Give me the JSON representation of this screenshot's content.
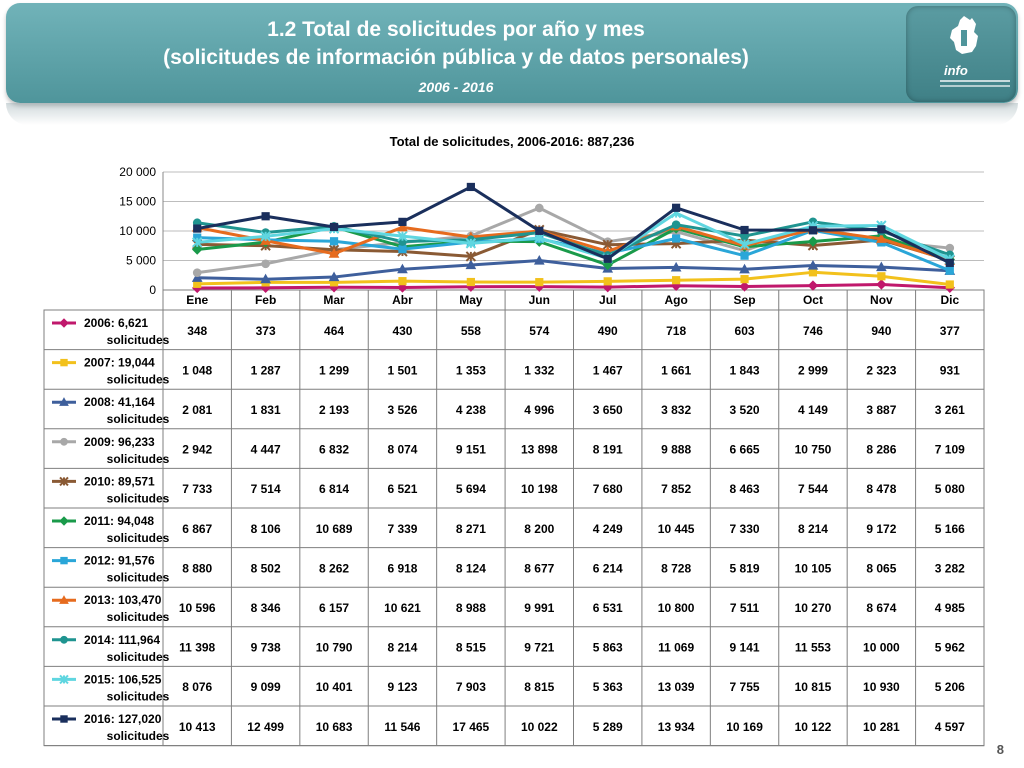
{
  "header": {
    "title_line1": "1.2 Total de solicitudes por año y mes",
    "title_line2": "(solicitudes de información pública y de datos personales)",
    "subtitle": "2006 - 2016",
    "logo_text": "info"
  },
  "page_number": "8",
  "chart_data": {
    "type": "line",
    "title": "Total de solicitudes, 2006-2016: 887,236",
    "xlabel": "",
    "ylabel": "",
    "ylim": [
      0,
      20000
    ],
    "yticks": [
      0,
      5000,
      10000,
      15000,
      20000
    ],
    "ytick_labels": [
      "0",
      "5 000",
      "10 000",
      "15 000",
      "20 000"
    ],
    "grid": true,
    "legend": "data-table",
    "categories": [
      "Ene",
      "Feb",
      "Mar",
      "Abr",
      "May",
      "Jun",
      "Jul",
      "Ago",
      "Sep",
      "Oct",
      "Nov",
      "Dic"
    ],
    "series": [
      {
        "name_line1": "2006: 6,621",
        "name_line2": "solicitudes",
        "color": "#c0186c",
        "marker": "diamond",
        "values": [
          348,
          373,
          464,
          430,
          558,
          574,
          490,
          718,
          603,
          746,
          940,
          377
        ],
        "labels": [
          "348",
          "373",
          "464",
          "430",
          "558",
          "574",
          "490",
          "718",
          "603",
          "746",
          "940",
          "377"
        ]
      },
      {
        "name_line1": "2007: 19,044",
        "name_line2": "solicitudes",
        "color": "#f2c11c",
        "marker": "square",
        "values": [
          1048,
          1287,
          1299,
          1501,
          1353,
          1332,
          1467,
          1661,
          1843,
          2999,
          2323,
          931
        ],
        "labels": [
          "1 048",
          "1 287",
          "1 299",
          "1 501",
          "1 353",
          "1 332",
          "1 467",
          "1 661",
          "1 843",
          "2 999",
          "2 323",
          "931"
        ]
      },
      {
        "name_line1": "2008: 41,164",
        "name_line2": "solicitudes",
        "color": "#3e5f9c",
        "marker": "triangle",
        "values": [
          2081,
          1831,
          2193,
          3526,
          4238,
          4996,
          3650,
          3832,
          3520,
          4149,
          3887,
          3261
        ],
        "labels": [
          "2 081",
          "1 831",
          "2 193",
          "3 526",
          "4 238",
          "4 996",
          "3 650",
          "3 832",
          "3 520",
          "4 149",
          "3 887",
          "3 261"
        ]
      },
      {
        "name_line1": "2009: 96,233",
        "name_line2": "solicitudes",
        "color": "#a8a8a8",
        "marker": "circle",
        "values": [
          2942,
          4447,
          6832,
          8074,
          9151,
          13898,
          8191,
          9888,
          6665,
          10750,
          8286,
          7109
        ],
        "labels": [
          "2 942",
          "4 447",
          "6 832",
          "8 074",
          "9 151",
          "13 898",
          "8 191",
          "9 888",
          "6 665",
          "10 750",
          "8 286",
          "7 109"
        ]
      },
      {
        "name_line1": "2010: 89,571",
        "name_line2": "solicitudes",
        "color": "#8a5a34",
        "marker": "star",
        "values": [
          7733,
          7514,
          6814,
          6521,
          5694,
          10198,
          7680,
          7852,
          8463,
          7544,
          8478,
          5080
        ],
        "labels": [
          "7 733",
          "7 514",
          "6 814",
          "6 521",
          "5 694",
          "10 198",
          "7 680",
          "7 852",
          "8 463",
          "7 544",
          "8 478",
          "5 080"
        ]
      },
      {
        "name_line1": "2011: 94,048",
        "name_line2": "solicitudes",
        "color": "#1a9a4a",
        "marker": "diamond",
        "values": [
          6867,
          8106,
          10689,
          7339,
          8271,
          8200,
          4249,
          10445,
          7330,
          8214,
          9172,
          5166
        ],
        "labels": [
          "6 867",
          "8 106",
          "10 689",
          "7 339",
          "8 271",
          "8 200",
          "4 249",
          "10 445",
          "7 330",
          "8 214",
          "9 172",
          "5 166"
        ]
      },
      {
        "name_line1": "2012: 91,576",
        "name_line2": "solicitudes",
        "color": "#2aa6d8",
        "marker": "square",
        "values": [
          8880,
          8502,
          8262,
          6918,
          8124,
          8677,
          6214,
          8728,
          5819,
          10105,
          8065,
          3282
        ],
        "labels": [
          "8 880",
          "8 502",
          "8 262",
          "6 918",
          "8 124",
          "8 677",
          "6 214",
          "8 728",
          "5 819",
          "10 105",
          "8 065",
          "3 282"
        ]
      },
      {
        "name_line1": "2013: 103,470",
        "name_line2": "solicitudes",
        "color": "#e66b1e",
        "marker": "triangle",
        "values": [
          10596,
          8346,
          6157,
          10621,
          8988,
          9991,
          6531,
          10800,
          7511,
          10270,
          8674,
          4985
        ],
        "labels": [
          "10 596",
          "8 346",
          "6 157",
          "10 621",
          "8 988",
          "9 991",
          "6 531",
          "10 800",
          "7 511",
          "10 270",
          "8 674",
          "4 985"
        ]
      },
      {
        "name_line1": "2014: 111,964",
        "name_line2": "solicitudes",
        "color": "#1f9490",
        "marker": "circle",
        "values": [
          11398,
          9738,
          10790,
          8214,
          8515,
          9721,
          5863,
          11069,
          9141,
          11553,
          10000,
          5962
        ],
        "labels": [
          "11 398",
          "9 738",
          "10 790",
          "8 214",
          "8 515",
          "9 721",
          "5 863",
          "11 069",
          "9 141",
          "11 553",
          "10 000",
          "5 962"
        ]
      },
      {
        "name_line1": "2015: 106,525",
        "name_line2": "solicitudes",
        "color": "#5fd6e0",
        "marker": "star",
        "values": [
          8076,
          9099,
          10401,
          9123,
          7903,
          8815,
          5363,
          13039,
          7755,
          10815,
          10930,
          5206
        ],
        "labels": [
          "8 076",
          "9 099",
          "10 401",
          "9 123",
          "7 903",
          "8 815",
          "5 363",
          "13 039",
          "7 755",
          "10 815",
          "10 930",
          "5 206"
        ]
      },
      {
        "name_line1": "2016: 127,020",
        "name_line2": "solicitudes",
        "color": "#1a2f5c",
        "marker": "square",
        "values": [
          10413,
          12499,
          10683,
          11546,
          17465,
          10022,
          5289,
          13934,
          10169,
          10122,
          10281,
          4597
        ],
        "labels": [
          "10 413",
          "12 499",
          "10 683",
          "11 546",
          "17 465",
          "10 022",
          "5 289",
          "13 934",
          "10 169",
          "10 122",
          "10 281",
          "4 597"
        ]
      }
    ]
  }
}
